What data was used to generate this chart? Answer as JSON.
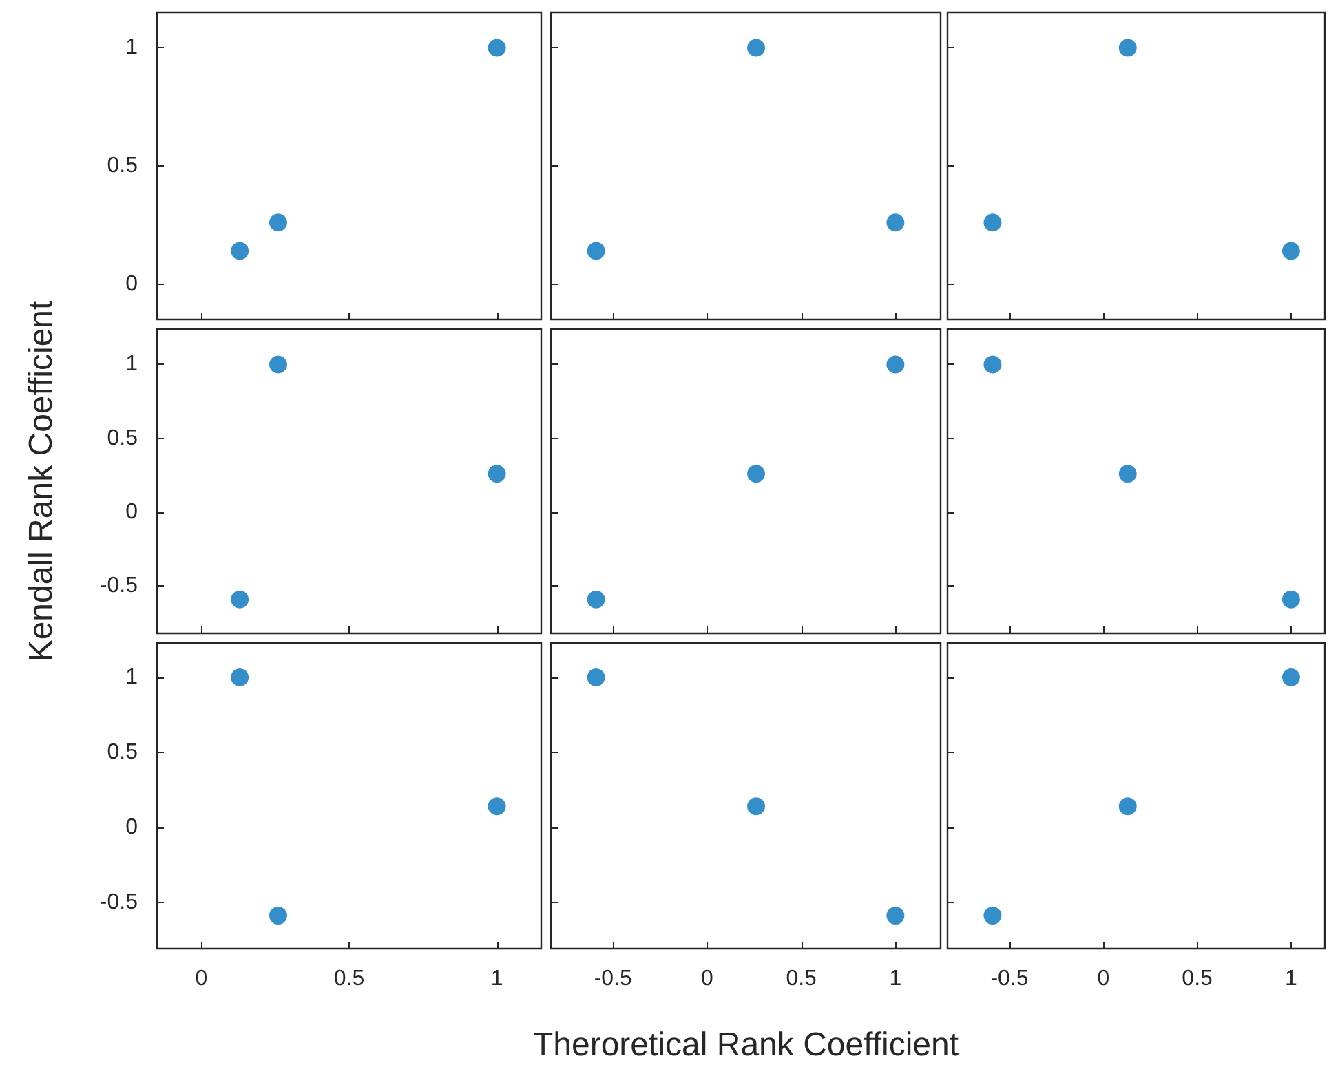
{
  "chart_data": [
    {
      "type": "scatter",
      "x": [
        0.13,
        0.26,
        1
      ],
      "values": [
        0.14,
        0.26,
        1
      ],
      "color": "#0072bd",
      "marker": "circle",
      "xlim": [
        -0.15,
        1.15
      ],
      "ylim": [
        -0.15,
        1.15
      ],
      "xticks": [
        0,
        0.5,
        1
      ],
      "yticks": [
        0,
        0.5,
        1
      ],
      "tick_labels": "y"
    },
    {
      "type": "scatter",
      "x": [
        -0.59,
        0.26,
        1
      ],
      "values": [
        0.14,
        1,
        0.26
      ],
      "color": "#0072bd",
      "marker": "circle",
      "xlim": [
        -0.83,
        1.24
      ],
      "ylim": [
        -0.15,
        1.15
      ],
      "xticks": [
        -0.5,
        0,
        0.5,
        1
      ],
      "yticks": [
        0,
        0.5,
        1
      ],
      "tick_labels": false
    },
    {
      "type": "scatter",
      "x": [
        -0.59,
        0.13,
        1
      ],
      "values": [
        0.26,
        1,
        0.14
      ],
      "color": "#0072bd",
      "marker": "circle",
      "xlim": [
        -0.83,
        1.18
      ],
      "ylim": [
        -0.15,
        1.15
      ],
      "xticks": [
        -0.5,
        0,
        0.5,
        1
      ],
      "yticks": [
        0,
        0.5,
        1
      ],
      "tick_labels": false
    },
    {
      "type": "scatter",
      "x": [
        0.13,
        0.26,
        1
      ],
      "values": [
        -0.59,
        1,
        0.26
      ],
      "color": "#0072bd",
      "marker": "circle",
      "xlim": [
        -0.15,
        1.15
      ],
      "ylim": [
        -0.82,
        1.24
      ],
      "xticks": [
        0,
        0.5,
        1
      ],
      "yticks": [
        -0.5,
        0,
        0.5,
        1
      ],
      "tick_labels": "y",
      "ylabel": "Kendall Rank Coefficient"
    },
    {
      "type": "scatter",
      "x": [
        -0.59,
        0.26,
        1
      ],
      "values": [
        -0.59,
        0.26,
        1
      ],
      "color": "#0072bd",
      "marker": "circle",
      "xlim": [
        -0.83,
        1.24
      ],
      "ylim": [
        -0.82,
        1.24
      ],
      "xticks": [
        -0.5,
        0,
        0.5,
        1
      ],
      "yticks": [
        -0.5,
        0,
        0.5,
        1
      ],
      "tick_labels": false
    },
    {
      "type": "scatter",
      "x": [
        -0.59,
        0.13,
        1
      ],
      "values": [
        1,
        0.26,
        -0.59
      ],
      "color": "#0072bd",
      "marker": "circle",
      "xlim": [
        -0.83,
        1.18
      ],
      "ylim": [
        -0.82,
        1.24
      ],
      "xticks": [
        -0.5,
        0,
        0.5,
        1
      ],
      "yticks": [
        -0.5,
        0,
        0.5,
        1
      ],
      "tick_labels": false
    },
    {
      "type": "scatter",
      "x": [
        0.13,
        0.26,
        1
      ],
      "values": [
        1,
        -0.59,
        0.14
      ],
      "color": "#0072bd",
      "marker": "circle",
      "xlim": [
        -0.15,
        1.15
      ],
      "ylim": [
        -0.81,
        1.23
      ],
      "xticks": [
        0,
        0.5,
        1
      ],
      "yticks": [
        -0.5,
        0,
        0.5,
        1
      ]
    },
    {
      "type": "scatter",
      "x": [
        -0.59,
        0.26,
        1
      ],
      "values": [
        1,
        0.14,
        -0.59
      ],
      "color": "#0072bd",
      "marker": "circle",
      "xlim": [
        -0.83,
        1.24
      ],
      "ylim": [
        -0.81,
        1.23
      ],
      "xticks": [
        -0.5,
        0,
        0.5,
        1
      ],
      "yticks": [
        -0.5,
        0,
        0.5,
        1
      ],
      "tick_labels": "x",
      "xlabel": "Theroretical Rank Coefficient"
    },
    {
      "type": "scatter",
      "x": [
        -0.59,
        0.13,
        1
      ],
      "values": [
        -0.59,
        0.14,
        1
      ],
      "color": "#0072bd",
      "marker": "circle",
      "xlim": [
        -0.83,
        1.18
      ],
      "ylim": [
        -0.81,
        1.23
      ],
      "xticks": [
        -0.5,
        0,
        0.5,
        1
      ],
      "yticks": [
        -0.5,
        0,
        0.5,
        1
      ],
      "tick_labels": "x"
    }
  ]
}
